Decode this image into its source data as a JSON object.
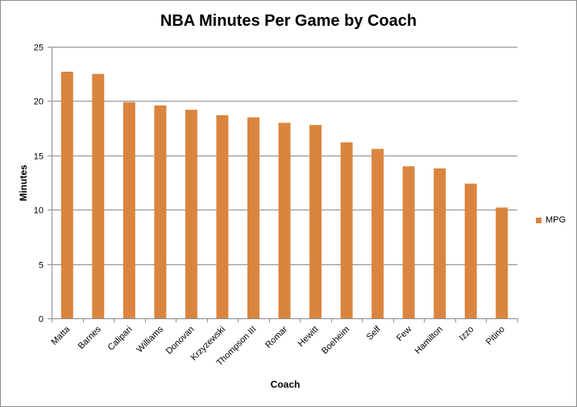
{
  "chart_data": {
    "type": "bar",
    "title": "NBA Minutes Per Game by Coach",
    "xlabel": "Coach",
    "ylabel": "Minutes",
    "categories": [
      "Matta",
      "Barnes",
      "Calipari",
      "Williams",
      "Donovan",
      "Krzyzewski",
      "Thompson III",
      "Romar",
      "Hewitt",
      "Boeheim",
      "Self",
      "Few",
      "Hamilton",
      "Izzo",
      "Pitino"
    ],
    "series": [
      {
        "name": "MPG",
        "values": [
          22.7,
          22.5,
          19.9,
          19.6,
          19.2,
          18.7,
          18.5,
          18.0,
          17.8,
          16.2,
          15.6,
          14.0,
          13.8,
          12.4,
          10.2
        ]
      }
    ],
    "ylim": [
      0,
      25
    ],
    "yticks": [
      0,
      5,
      10,
      15,
      20,
      25
    ],
    "grid": true,
    "legend": "right",
    "colors": {
      "bar": "#DA853F",
      "grid": "#8c8c8c",
      "axis": "#8c8c8c"
    }
  }
}
